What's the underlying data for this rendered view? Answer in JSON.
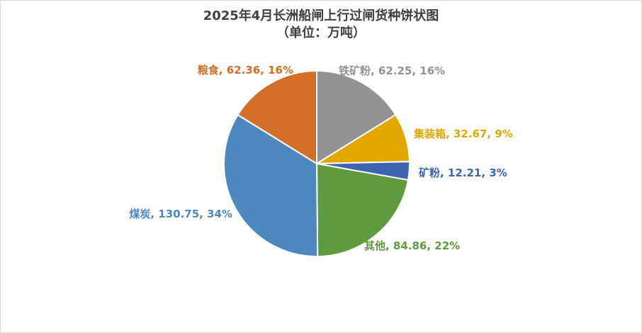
{
  "chart_data": {
    "type": "pie",
    "title": "2025年4月长洲船闸上行过闸货种饼状图",
    "subtitle": "（单位：万吨）",
    "start_angle_deg": 0,
    "direction": "clockwise",
    "slices": [
      {
        "name": "铁矿粉",
        "value": 62.25,
        "percent": "16%",
        "color": "#939393",
        "label": "铁矿粉, 62.25, 16%"
      },
      {
        "name": "集装箱",
        "value": 32.67,
        "percent": "9%",
        "color": "#E3A800",
        "label": "集装箱, 32.67, 9%"
      },
      {
        "name": "矿粉",
        "value": 12.21,
        "percent": "3%",
        "color": "#3C64B1",
        "label": "矿粉, 12.21, 3%"
      },
      {
        "name": "其他",
        "value": 84.86,
        "percent": "22%",
        "color": "#5F9A3E",
        "label": "其他, 84.86, 22%"
      },
      {
        "name": "煤炭",
        "value": 130.75,
        "percent": "34%",
        "color": "#4D87BF",
        "label": "煤炭, 130.75, 34%"
      },
      {
        "name": "粮食",
        "value": 62.36,
        "percent": "16%",
        "color": "#D46F2A",
        "label": "粮食, 62.36, 16%"
      }
    ]
  }
}
